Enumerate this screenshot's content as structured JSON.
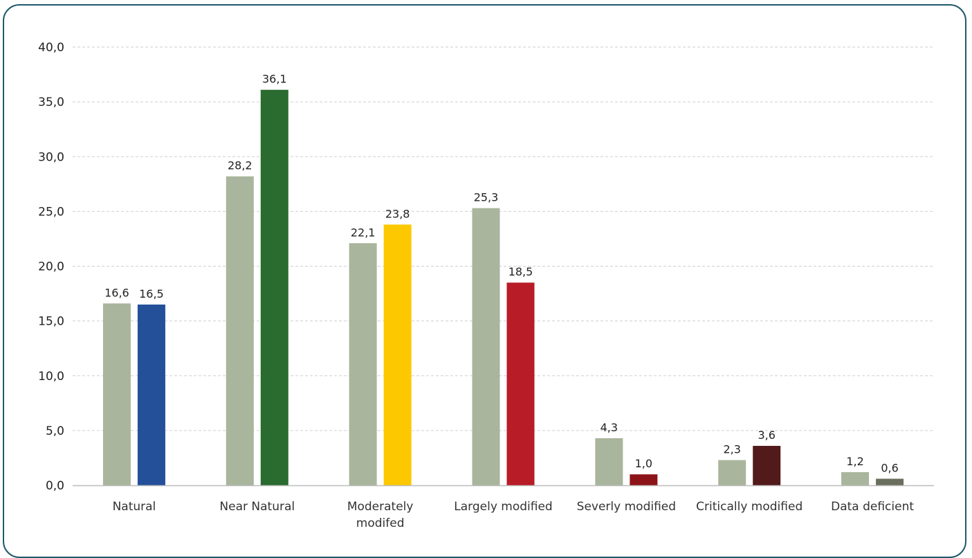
{
  "chart_data": {
    "type": "bar",
    "title": "",
    "xlabel": "",
    "ylabel": "",
    "ylim": [
      0,
      40
    ],
    "yticks": [
      "0,0",
      "5,0",
      "10,0",
      "15,0",
      "20,0",
      "25,0",
      "30,0",
      "35,0",
      "40,0"
    ],
    "grid": true,
    "legend": "none",
    "categories": [
      [
        "Natural"
      ],
      [
        "Near Natural"
      ],
      [
        "Moderately",
        "modifed"
      ],
      [
        "Largely modified"
      ],
      [
        "Severly modified"
      ],
      [
        "Critically modified"
      ],
      [
        "Data deficient"
      ]
    ],
    "series": [
      {
        "values": [
          16.6,
          28.2,
          22.1,
          25.3,
          4.3,
          2.3,
          1.2
        ],
        "labels": [
          "16,6",
          "28,2",
          "22,1",
          "25,3",
          "4,3",
          "2,3",
          "1,2"
        ],
        "colors": [
          "#a9b59c",
          "#a9b59c",
          "#a9b59c",
          "#a9b59c",
          "#a9b59c",
          "#a9b59c",
          "#a9b59c"
        ]
      },
      {
        "values": [
          16.5,
          36.1,
          23.8,
          18.5,
          1.0,
          3.6,
          0.6
        ],
        "labels": [
          "16,5",
          "36,1",
          "23,8",
          "18,5",
          "1,0",
          "3,6",
          "0,6"
        ],
        "colors": [
          "#24509a",
          "#2a6b30",
          "#fdc800",
          "#b81c27",
          "#8c1418",
          "#521a1a",
          "#6a6e5c"
        ]
      }
    ]
  }
}
